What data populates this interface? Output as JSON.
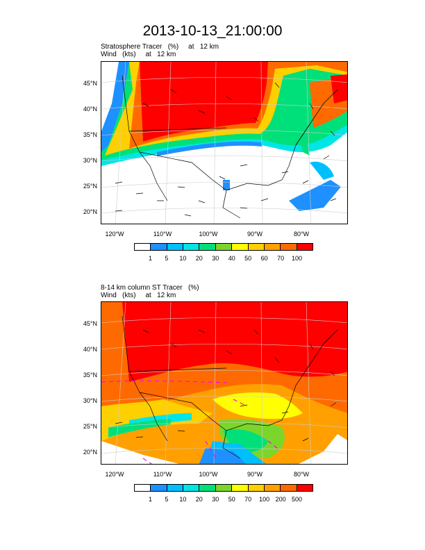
{
  "title": "2013-10-13_21:00:00",
  "panel1": {
    "line1": "Stratosphere Tracer   (%)     at   12 km",
    "line2": "Wind   (kts)     at   12 km",
    "lat_labels": [
      "45°N",
      "40°N",
      "35°N",
      "30°N",
      "25°N",
      "20°N"
    ],
    "lon_labels": [
      "120°W",
      "110°W",
      "100°W",
      "90°W",
      "80°W"
    ],
    "colorbar": {
      "colors": [
        "#ffffff",
        "#1e90ff",
        "#00bfff",
        "#00e5e5",
        "#00e07a",
        "#7cd62a",
        "#ffff00",
        "#ffd000",
        "#ffa000",
        "#ff6a00",
        "#ff0000"
      ],
      "labels": [
        "1",
        "5",
        "10",
        "20",
        "30",
        "40",
        "50",
        "60",
        "70",
        "100"
      ]
    }
  },
  "panel2": {
    "line1": "8-14 km column ST Tracer   (%)",
    "line2": "Wind   (kts)     at   12 km",
    "lat_labels": [
      "45°N",
      "40°N",
      "35°N",
      "30°N",
      "25°N",
      "20°N"
    ],
    "lon_labels": [
      "120°W",
      "110°W",
      "100°W",
      "90°W",
      "80°W"
    ],
    "colorbar": {
      "colors": [
        "#ffffff",
        "#1e90ff",
        "#00bfff",
        "#00e5e5",
        "#00e07a",
        "#7cd62a",
        "#ffff00",
        "#ffd000",
        "#ffa000",
        "#ff6a00",
        "#ff0000"
      ],
      "labels": [
        "1",
        "5",
        "10",
        "20",
        "30",
        "50",
        "70",
        "100",
        "200",
        "500"
      ]
    }
  }
}
